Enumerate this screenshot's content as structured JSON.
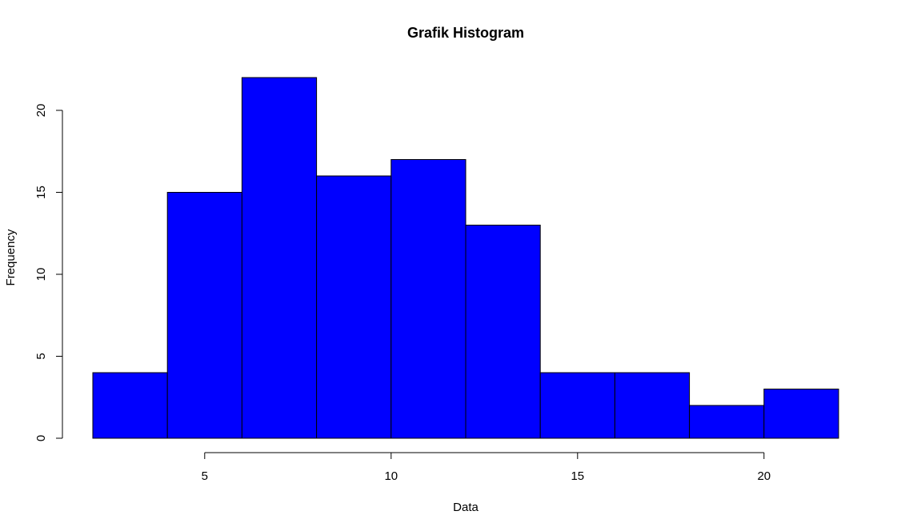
{
  "chart_data": {
    "type": "bar",
    "subtype": "histogram",
    "title": "Grafik Histogram",
    "xlabel": "Data",
    "ylabel": "Frequency",
    "bin_edges": [
      2,
      4,
      6,
      8,
      10,
      12,
      14,
      16,
      18,
      20,
      22
    ],
    "values": [
      4,
      15,
      22,
      16,
      17,
      13,
      4,
      4,
      2,
      3
    ],
    "xlim": [
      2,
      22
    ],
    "ylim": [
      0,
      22
    ],
    "x_ticks": [
      5,
      10,
      15,
      20
    ],
    "y_ticks": [
      0,
      5,
      10,
      15,
      20
    ],
    "bar_color": "#0000ff",
    "grid": false,
    "legend": "none"
  }
}
